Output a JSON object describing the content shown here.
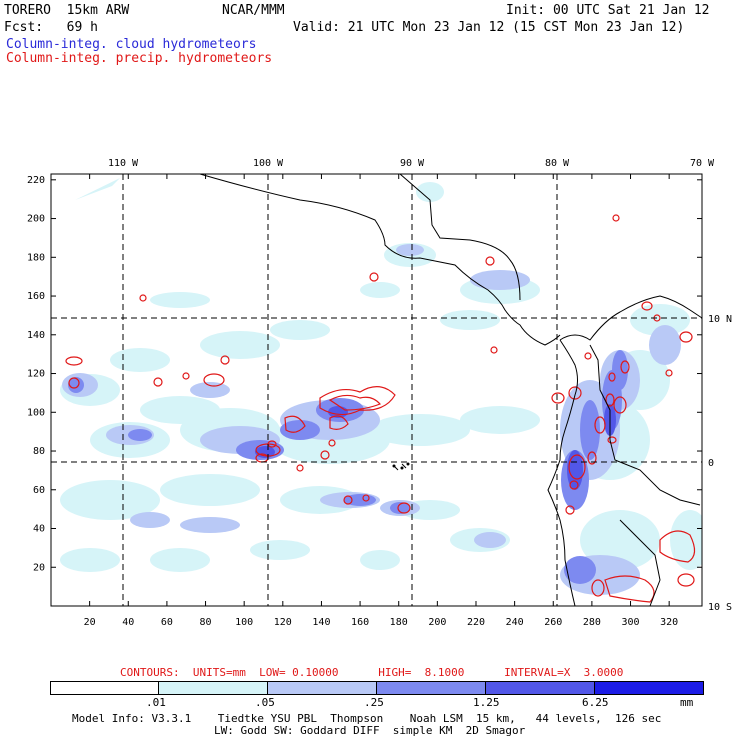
{
  "header": {
    "model_title": "TORERO  15km ARW",
    "org": "NCAR/MMM",
    "init": "Init: 00 UTC Sat 21 Jan 12",
    "fcst": "Fcst:   69 h",
    "valid": "Valid: 21 UTC Mon 23 Jan 12 (15 CST Mon 23 Jan 12)",
    "legend_cloud": "Column-integ. cloud hydrometeors",
    "legend_precip": "Column-integ. precip. hydrometeors"
  },
  "map": {
    "lon_labels": [
      "110 W",
      "100 W",
      "90 W",
      "80 W",
      "70 W"
    ],
    "lat_labels": [
      "10 N",
      "0",
      "10 S"
    ],
    "y_ticks": [
      "220",
      "200",
      "180",
      "160",
      "140",
      "120",
      "100",
      "80",
      "60",
      "40",
      "20"
    ],
    "x_ticks": [
      "20",
      "40",
      "60",
      "80",
      "100",
      "120",
      "140",
      "160",
      "180",
      "200",
      "220",
      "240",
      "260",
      "280",
      "300",
      "320"
    ]
  },
  "contour_info": "CONTOURS:  UNITS=mm  LOW= 0.10000      HIGH=  8.1000      INTERVAL=X  3.0000",
  "colorbar": {
    "labels": [
      ".01",
      ".05",
      ".25",
      "1.25",
      "6.25"
    ],
    "unit": "mm",
    "colors": [
      "#ffffff",
      "#d6f4f8",
      "#b9c9f6",
      "#7d8af0",
      "#5257e8",
      "#1c1ce6"
    ]
  },
  "footer": {
    "line1": "Model Info: V3.3.1    Tiedtke YSU PBL  Thompson    Noah LSM  15 km,   44 levels,  126 sec",
    "line2": "LW: Godd SW: Goddard DIFF  simple KM  2D Smagor"
  }
}
